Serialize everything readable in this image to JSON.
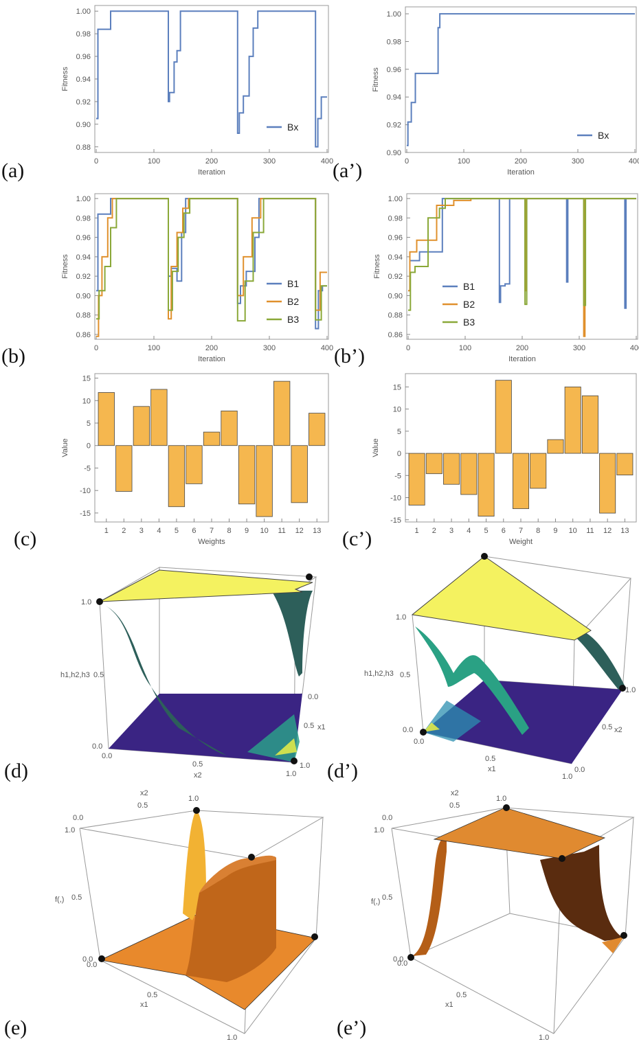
{
  "panel_letters": {
    "a": "(a)",
    "a2": "(a’)",
    "b": "(b)",
    "b2": "(b’)",
    "c": "(c)",
    "c2": "(c’)",
    "d": "(d)",
    "d2": "(d’)",
    "e": "(e)",
    "e2": "(e’)"
  },
  "colors": {
    "blue": "#5b7fbd",
    "orange": "#e0902c",
    "green": "#8aa838",
    "bar": "#f5b74f",
    "yellow": "#f4f260",
    "purple": "#3a2483",
    "teal": "#2d5f5a",
    "copper": "#c8721c"
  },
  "chart_data": [
    {
      "id": "a",
      "type": "line",
      "xlabel": "Iteration",
      "ylabel": "Fitness",
      "xlim": [
        0,
        400
      ],
      "ylim": [
        0.875,
        1.005
      ],
      "xticks": [
        0,
        100,
        200,
        300,
        400
      ],
      "yticks": [
        0.88,
        0.9,
        0.92,
        0.94,
        0.96,
        0.98,
        1.0
      ],
      "ytick_labels": [
        "0.88",
        "0.90",
        "0.92",
        "0.94",
        "0.96",
        "0.98",
        "1.00"
      ],
      "legend_position": "bottom-right",
      "series": [
        {
          "name": "Bx",
          "color_key": "blue",
          "x": [
            0,
            3,
            3,
            25,
            25,
            125,
            125,
            127,
            127,
            135,
            135,
            140,
            140,
            146,
            146,
            245,
            245,
            248,
            248,
            255,
            255,
            265,
            265,
            272,
            272,
            280,
            280,
            380,
            380,
            384,
            384,
            390,
            390,
            400
          ],
          "y": [
            0.905,
            0.905,
            0.984,
            0.984,
            1.0,
            1.0,
            0.92,
            0.92,
            0.928,
            0.928,
            0.955,
            0.955,
            0.965,
            0.965,
            1.0,
            1.0,
            0.892,
            0.892,
            0.91,
            0.91,
            0.925,
            0.925,
            0.96,
            0.96,
            0.985,
            0.985,
            1.0,
            1.0,
            0.88,
            0.88,
            0.905,
            0.905,
            0.924,
            0.924
          ]
        }
      ]
    },
    {
      "id": "a2",
      "type": "line",
      "xlabel": "Iteration",
      "ylabel": "Fitness",
      "xlim": [
        0,
        400
      ],
      "ylim": [
        0.9,
        1.005
      ],
      "xticks": [
        0,
        100,
        200,
        300,
        400
      ],
      "yticks": [
        0.9,
        0.92,
        0.94,
        0.96,
        0.98,
        1.0
      ],
      "ytick_labels": [
        "0.90",
        "0.92",
        "0.94",
        "0.96",
        "0.98",
        "1.00"
      ],
      "legend_position": "bottom-right",
      "series": [
        {
          "name": "Bx",
          "color_key": "blue",
          "x": [
            0,
            2,
            2,
            8,
            8,
            15,
            15,
            55,
            55,
            58,
            58,
            400
          ],
          "y": [
            0.905,
            0.905,
            0.922,
            0.922,
            0.936,
            0.936,
            0.957,
            0.957,
            0.99,
            0.99,
            1.0,
            1.0
          ]
        }
      ]
    },
    {
      "id": "b",
      "type": "line",
      "xlabel": "Iteration",
      "ylabel": "Fitness",
      "xlim": [
        0,
        400
      ],
      "ylim": [
        0.855,
        1.005
      ],
      "xticks": [
        0,
        100,
        200,
        300,
        400
      ],
      "yticks": [
        0.86,
        0.88,
        0.9,
        0.92,
        0.94,
        0.96,
        0.98,
        1.0
      ],
      "ytick_labels": [
        "0.86",
        "0.88",
        "0.90",
        "0.92",
        "0.94",
        "0.96",
        "0.98",
        "1.00"
      ],
      "legend_position": "bottom-right",
      "series": [
        {
          "name": "B1",
          "color_key": "blue",
          "x": [
            0,
            3,
            3,
            25,
            25,
            125,
            125,
            130,
            130,
            140,
            140,
            148,
            148,
            155,
            155,
            245,
            245,
            250,
            250,
            260,
            260,
            275,
            275,
            282,
            282,
            380,
            380,
            385,
            385,
            392,
            392,
            400
          ],
          "y": [
            0.905,
            0.905,
            0.984,
            0.984,
            1.0,
            1.0,
            0.92,
            0.92,
            0.928,
            0.928,
            0.915,
            0.915,
            0.965,
            0.965,
            1.0,
            1.0,
            0.892,
            0.892,
            0.91,
            0.91,
            0.925,
            0.925,
            0.96,
            0.96,
            1.0,
            1.0,
            0.866,
            0.866,
            0.905,
            0.905,
            0.91,
            0.91
          ]
        },
        {
          "name": "B2",
          "color_key": "orange",
          "x": [
            0,
            4,
            4,
            10,
            10,
            20,
            20,
            28,
            28,
            125,
            125,
            130,
            130,
            140,
            140,
            150,
            150,
            160,
            160,
            245,
            245,
            255,
            255,
            270,
            270,
            285,
            285,
            380,
            380,
            388,
            388,
            395,
            395,
            400
          ],
          "y": [
            0.858,
            0.858,
            0.9,
            0.9,
            0.94,
            0.94,
            0.98,
            0.98,
            1.0,
            1.0,
            0.876,
            0.876,
            0.93,
            0.93,
            0.965,
            0.965,
            0.99,
            0.99,
            1.0,
            1.0,
            0.9,
            0.9,
            0.94,
            0.94,
            0.98,
            0.98,
            1.0,
            1.0,
            0.885,
            0.885,
            0.924,
            0.924,
            0.924,
            0.924
          ]
        },
        {
          "name": "B3",
          "color_key": "green",
          "x": [
            0,
            5,
            5,
            15,
            15,
            25,
            25,
            35,
            35,
            125,
            125,
            132,
            132,
            142,
            142,
            152,
            152,
            162,
            162,
            245,
            245,
            258,
            258,
            272,
            272,
            290,
            290,
            380,
            380,
            390,
            390,
            400
          ],
          "y": [
            0.876,
            0.876,
            0.905,
            0.905,
            0.93,
            0.93,
            0.97,
            0.97,
            1.0,
            1.0,
            0.885,
            0.885,
            0.925,
            0.925,
            0.96,
            0.96,
            0.985,
            0.985,
            1.0,
            1.0,
            0.874,
            0.874,
            0.915,
            0.915,
            0.965,
            0.965,
            1.0,
            1.0,
            0.875,
            0.875,
            0.91,
            0.91
          ]
        }
      ]
    },
    {
      "id": "b2",
      "type": "line",
      "xlabel": "Iteration",
      "ylabel": "Fitness",
      "xlim": [
        0,
        400
      ],
      "ylim": [
        0.855,
        1.005
      ],
      "xticks": [
        0,
        100,
        200,
        300,
        400
      ],
      "yticks": [
        0.86,
        0.88,
        0.9,
        0.92,
        0.94,
        0.96,
        0.98,
        1.0
      ],
      "ytick_labels": [
        "0.86",
        "0.88",
        "0.90",
        "0.92",
        "0.94",
        "0.96",
        "0.98",
        "1.00"
      ],
      "legend_position": "bottom-left",
      "series": [
        {
          "name": "B1",
          "color_key": "blue",
          "x": [
            0,
            3,
            3,
            20,
            20,
            60,
            60,
            160,
            160,
            162,
            162,
            170,
            170,
            178,
            178,
            278,
            278,
            280,
            280,
            380,
            380,
            382,
            382,
            400
          ],
          "y": [
            0.905,
            0.905,
            0.936,
            0.936,
            0.945,
            0.945,
            1.0,
            1.0,
            0.893,
            0.893,
            0.91,
            0.91,
            0.912,
            0.912,
            1.0,
            1.0,
            0.914,
            0.914,
            1.0,
            1.0,
            0.887,
            0.887,
            1.0,
            1.0
          ]
        },
        {
          "name": "B2",
          "color_key": "orange",
          "x": [
            0,
            3,
            3,
            15,
            15,
            50,
            50,
            80,
            80,
            110,
            110,
            205,
            205,
            207,
            207,
            308,
            308,
            310,
            310,
            400
          ],
          "y": [
            0.905,
            0.905,
            0.945,
            0.945,
            0.957,
            0.957,
            0.993,
            0.993,
            0.998,
            0.998,
            1.0,
            1.0,
            0.905,
            0.905,
            1.0,
            1.0,
            0.858,
            0.858,
            1.0,
            1.0
          ]
        },
        {
          "name": "B3",
          "color_key": "green",
          "x": [
            0,
            4,
            4,
            12,
            12,
            35,
            35,
            55,
            55,
            65,
            65,
            205,
            205,
            208,
            208,
            308,
            308,
            311,
            311,
            400
          ],
          "y": [
            0.885,
            0.885,
            0.924,
            0.924,
            0.93,
            0.93,
            0.98,
            0.98,
            0.99,
            0.99,
            1.0,
            1.0,
            0.891,
            0.891,
            1.0,
            1.0,
            0.89,
            0.89,
            1.0,
            1.0
          ]
        }
      ]
    },
    {
      "id": "c",
      "type": "bar",
      "xlabel": "Weights",
      "ylabel": "Value",
      "ylim": [
        -17,
        16
      ],
      "yticks": [
        -15,
        -10,
        -5,
        0,
        5,
        10,
        15
      ],
      "ytick_labels": [
        "-15",
        "-10",
        "-5",
        "0",
        "5",
        "10",
        "15"
      ],
      "categories": [
        "1",
        "2",
        "3",
        "4",
        "5",
        "6",
        "7",
        "8",
        "9",
        "10",
        "11",
        "12",
        "13"
      ],
      "values": [
        11.8,
        -10.2,
        8.7,
        12.5,
        -13.6,
        -8.5,
        3.0,
        7.7,
        -13.0,
        -15.8,
        14.3,
        -12.7,
        7.2
      ]
    },
    {
      "id": "c2",
      "type": "bar",
      "xlabel": "Weight",
      "ylabel": "Value",
      "ylim": [
        -15.5,
        18
      ],
      "yticks": [
        -15,
        -10,
        -5,
        0,
        5,
        10,
        15
      ],
      "ytick_labels": [
        "-15",
        "-10",
        "-5",
        "0",
        "5",
        "10",
        "15"
      ],
      "categories": [
        "1",
        "2",
        "3",
        "4",
        "5",
        "6",
        "7",
        "8",
        "9",
        "10",
        "11",
        "12",
        "13"
      ],
      "values": [
        -11.7,
        -4.6,
        -7.0,
        -9.3,
        -14.2,
        16.5,
        -12.5,
        -7.9,
        3.1,
        15.0,
        13.0,
        -13.5,
        -4.9
      ]
    }
  ],
  "surface_d": {
    "zlabel": "h1,h2,h3",
    "z_ticks": [
      "1.0",
      "0.5",
      "0.0"
    ],
    "x2_label": "x2",
    "x2_ticks": [
      "0.0",
      "0.5",
      "1.0"
    ],
    "x1_label": "x1",
    "x1_ticks": [
      "0.0",
      "0.5",
      "1.0"
    ]
  },
  "surface_d2": {
    "zlabel": "h1,h2,h3",
    "z_ticks": [
      "1.0",
      "0.5",
      "0.0"
    ],
    "x1_label": "x1",
    "x1_ticks": [
      "0.0",
      "0.5",
      "1.0"
    ],
    "x2_label": "x2",
    "x2_ticks": [
      "0.0",
      "0.5",
      "1.0"
    ]
  },
  "surface_e": {
    "zlabel": "f(,)",
    "z_ticks": [
      "1.0",
      "0.5",
      "0.0"
    ],
    "x2_label": "x2",
    "x2_ticks": [
      "0.0",
      "0.5",
      "1.0"
    ],
    "x1_label": "x1",
    "x1_ticks": [
      "0.0",
      "0.5",
      "1.0"
    ]
  },
  "surface_e2": {
    "zlabel": "f(,)",
    "z_ticks": [
      "1.0",
      "0.5",
      "0.0"
    ],
    "x2_label": "x2",
    "x2_ticks": [
      "0.0",
      "0.5",
      "1.0"
    ],
    "x1_label": "x1",
    "x1_ticks": [
      "0.0",
      "0.5",
      "1.0"
    ]
  }
}
